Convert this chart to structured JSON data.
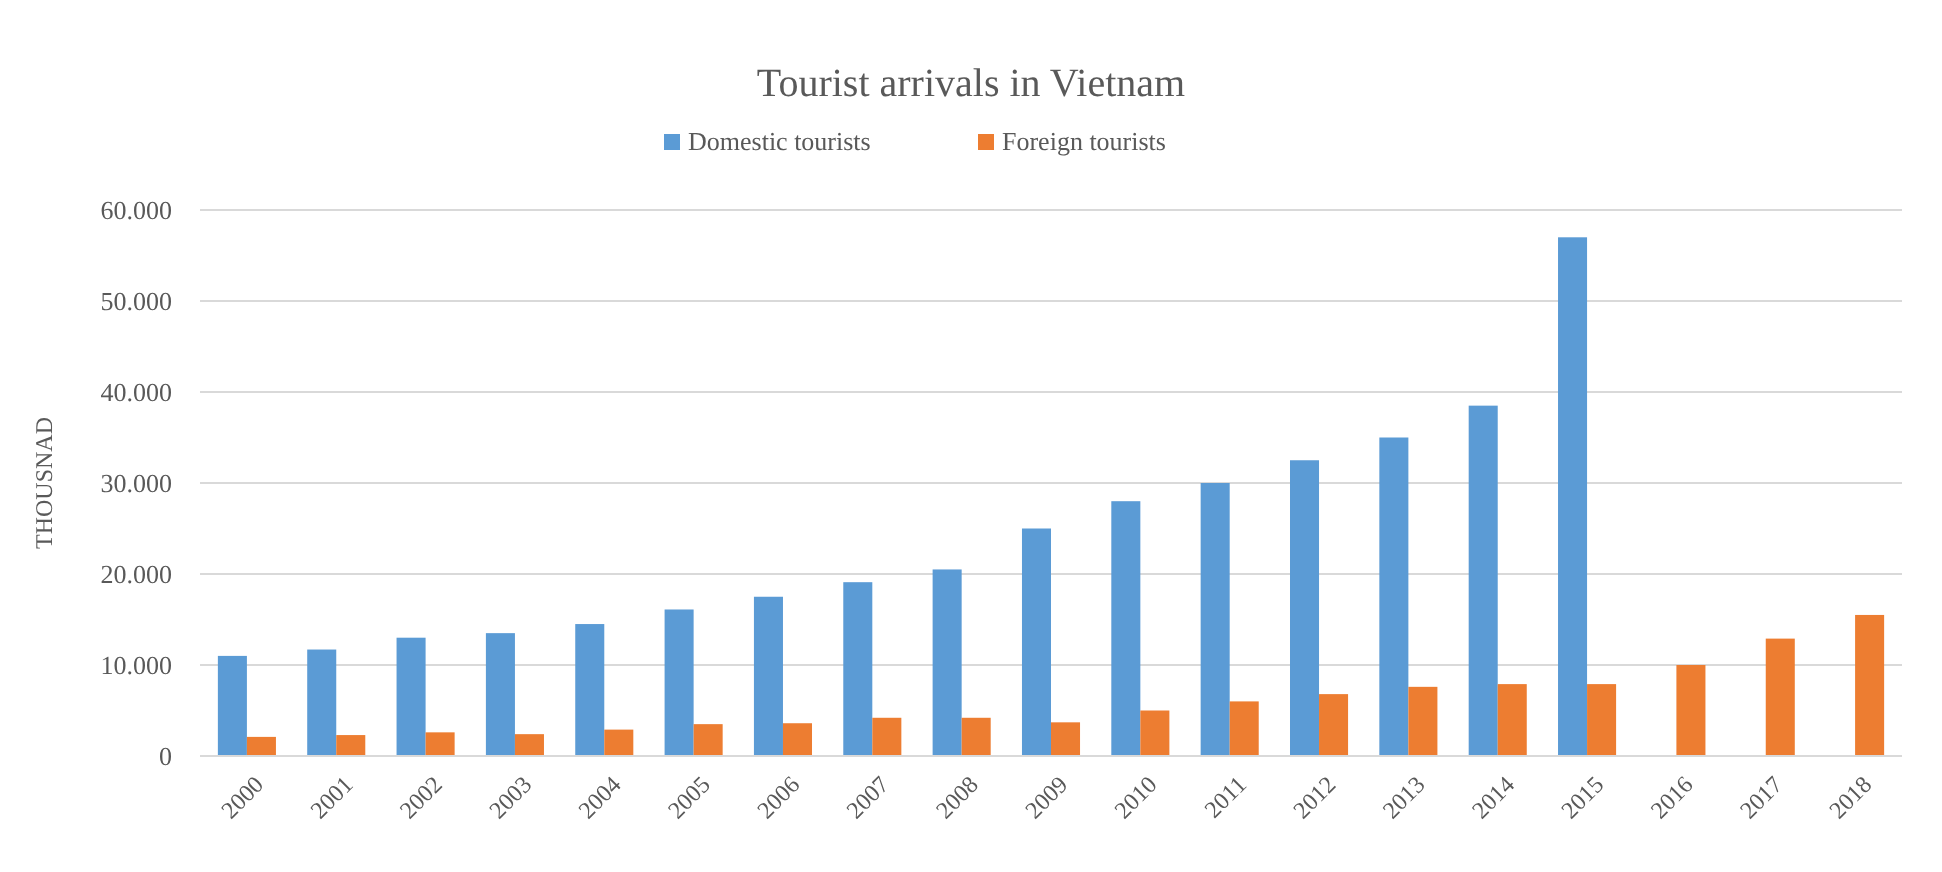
{
  "chart_data": {
    "type": "bar",
    "title": "Tourist arrivals in Vietnam",
    "ylabel": "THOUSNAD",
    "categories": [
      "2000",
      "2001",
      "2002",
      "2003",
      "2004",
      "2005",
      "2006",
      "2007",
      "2008",
      "2009",
      "2010",
      "2011",
      "2012",
      "2013",
      "2014",
      "2015",
      "2016",
      "2017",
      "2018"
    ],
    "series": [
      {
        "name": "Domestic tourists",
        "color": "#5b9bd5",
        "values": [
          11000,
          11700,
          13000,
          13500,
          14500,
          16100,
          17500,
          19100,
          20500,
          25000,
          28000,
          30000,
          32500,
          35000,
          38500,
          57000,
          null,
          null,
          null
        ]
      },
      {
        "name": "Foreign tourists",
        "color": "#ed7d31",
        "values": [
          2100,
          2300,
          2600,
          2400,
          2900,
          3500,
          3600,
          4200,
          4200,
          3700,
          5000,
          6000,
          6800,
          7600,
          7900,
          7900,
          10000,
          12900,
          15500
        ]
      }
    ],
    "ylim": [
      0,
      60000
    ],
    "yticks": [
      {
        "value": 0,
        "label": "0"
      },
      {
        "value": 10000,
        "label": "10.000"
      },
      {
        "value": 20000,
        "label": "20.000"
      },
      {
        "value": 30000,
        "label": "30.000"
      },
      {
        "value": 40000,
        "label": "40.000"
      },
      {
        "value": 50000,
        "label": "50.000"
      },
      {
        "value": 60000,
        "label": "60.000"
      }
    ],
    "grid": "y",
    "legend": "top"
  }
}
